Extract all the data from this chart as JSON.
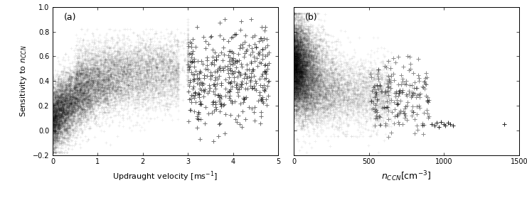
{
  "panel_a": {
    "label": "(a)",
    "xlabel": "Updraught velocity [ms$^{-1}$]",
    "ylabel": "Sensitivity to $n_{CCN}$",
    "xlim": [
      0,
      5
    ],
    "ylim": [
      -0.2,
      1.0
    ],
    "xticks": [
      0,
      1,
      2,
      3,
      4,
      5
    ],
    "yticks": [
      -0.2,
      0.0,
      0.2,
      0.4,
      0.6,
      0.8,
      1.0
    ]
  },
  "panel_b": {
    "label": "(b)",
    "xlabel": "$n_{CCN}$[cm$^{-3}$]",
    "xlim": [
      0,
      1500
    ],
    "ylim": [
      -0.2,
      1.0
    ],
    "xticks": [
      0,
      500,
      1000,
      1500
    ],
    "yticks": [
      -0.2,
      0.0,
      0.2,
      0.4,
      0.6,
      0.8,
      1.0
    ]
  },
  "marker": "+",
  "color": "black",
  "figure_size": [
    7.41,
    2.82
  ],
  "dpi": 100
}
